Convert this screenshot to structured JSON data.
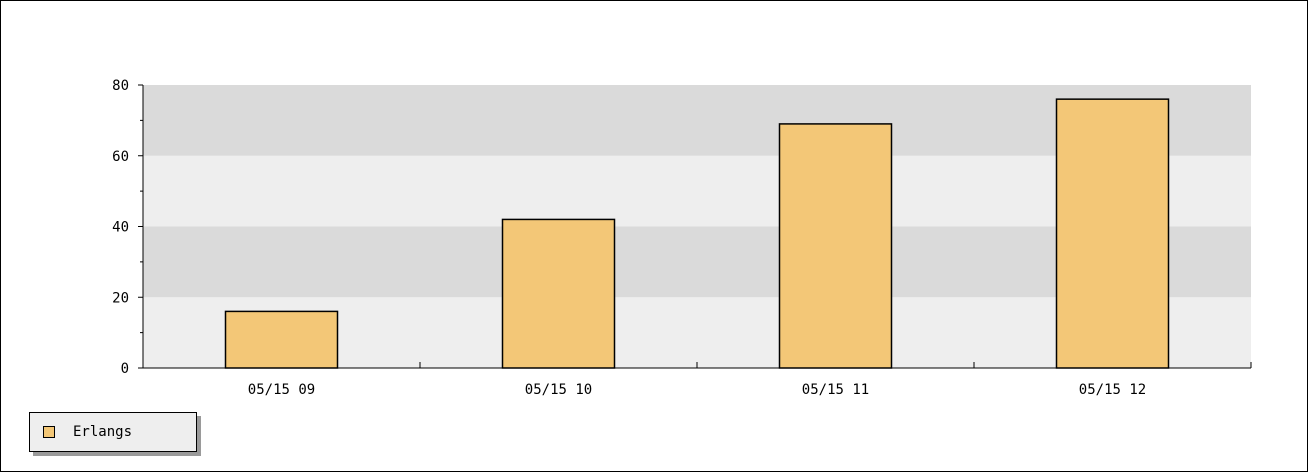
{
  "chart_data": {
    "type": "bar",
    "categories": [
      "05/15 09",
      "05/15 10",
      "05/15 11",
      "05/15 12"
    ],
    "series": [
      {
        "name": "Erlangs",
        "values": [
          16,
          42,
          69,
          76
        ]
      }
    ],
    "title": "",
    "xlabel": "",
    "ylabel": "",
    "ylim": [
      0,
      80
    ],
    "yticks": [
      0,
      20,
      40,
      60,
      80
    ],
    "grid": "alternating horizontal bands",
    "legend_position": "bottom-left",
    "colors": {
      "bar_fill": "#f3c777",
      "bar_stroke": "#000000",
      "band_dark": "#dadada",
      "band_light": "#eeeeee",
      "legend_bg": "#eeeeee"
    }
  },
  "legend": {
    "label": "Erlangs"
  }
}
